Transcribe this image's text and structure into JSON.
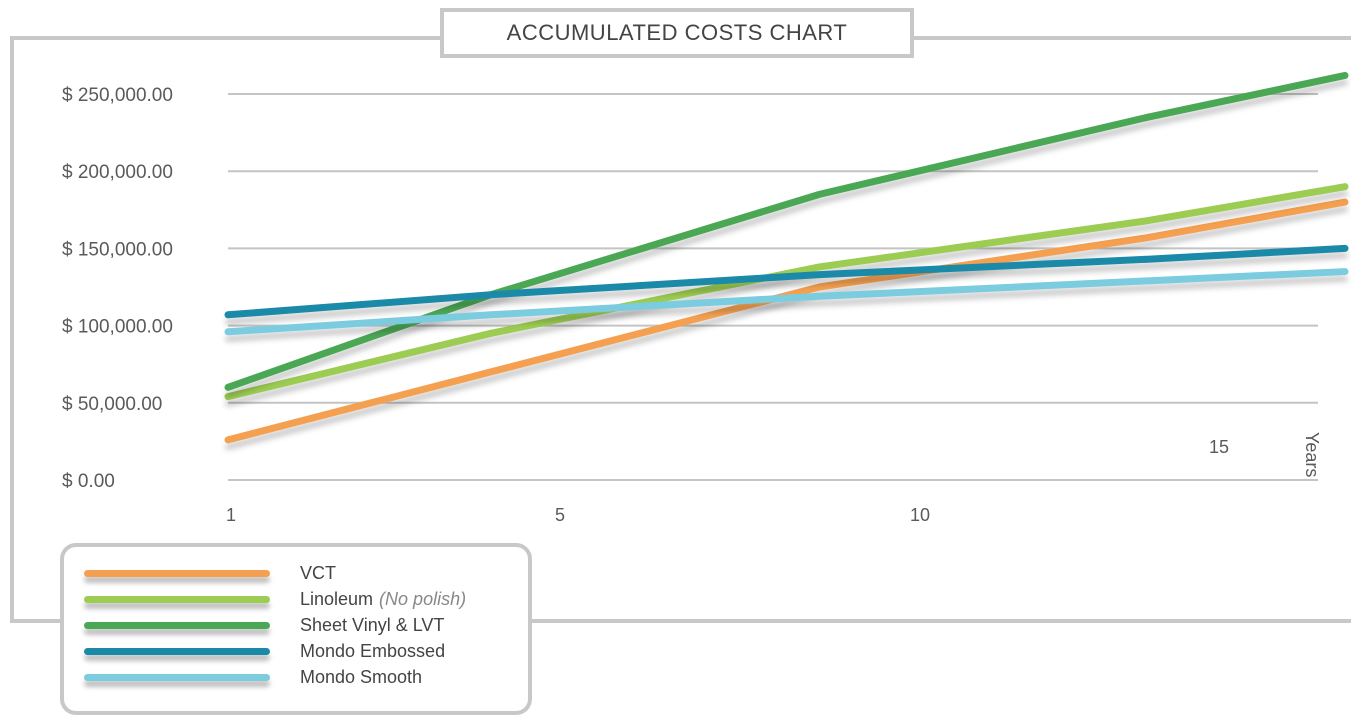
{
  "chart_data": {
    "type": "line",
    "title": "ACCUMULATED COSTS CHART",
    "xlabel": "Years",
    "ylabel": "",
    "x": [
      1,
      5,
      10,
      15,
      18
    ],
    "x_ticks": [
      "1",
      "5",
      "10",
      "15"
    ],
    "y_ticks": [
      "$ 0.00",
      "$ 50,000.00",
      "$ 100,000.00",
      "$ 150,000.00",
      "$ 200,000.00",
      "$ 250,000.00"
    ],
    "xlim": [
      1,
      18
    ],
    "ylim": [
      0,
      250000
    ],
    "grid": true,
    "legend_position": "bottom-left",
    "series": [
      {
        "name": "VCT",
        "note": "",
        "color": "#f5a050",
        "values": [
          26000,
          70000,
          125000,
          157000,
          180000
        ]
      },
      {
        "name": "Linoleum",
        "note": "(No polish)",
        "color": "#9ccc52",
        "values": [
          54000,
          95000,
          138000,
          168000,
          190000
        ]
      },
      {
        "name": "Sheet Vinyl & LVT",
        "note": "",
        "color": "#4aa855",
        "values": [
          60000,
          120000,
          185000,
          235000,
          262000
        ]
      },
      {
        "name": "Mondo Embossed",
        "note": "",
        "color": "#1a8aa8",
        "values": [
          107000,
          120000,
          133000,
          143000,
          150000
        ]
      },
      {
        "name": "Mondo Smooth",
        "note": "",
        "color": "#7ccce0",
        "values": [
          96000,
          107000,
          119000,
          129000,
          135000
        ]
      }
    ]
  }
}
